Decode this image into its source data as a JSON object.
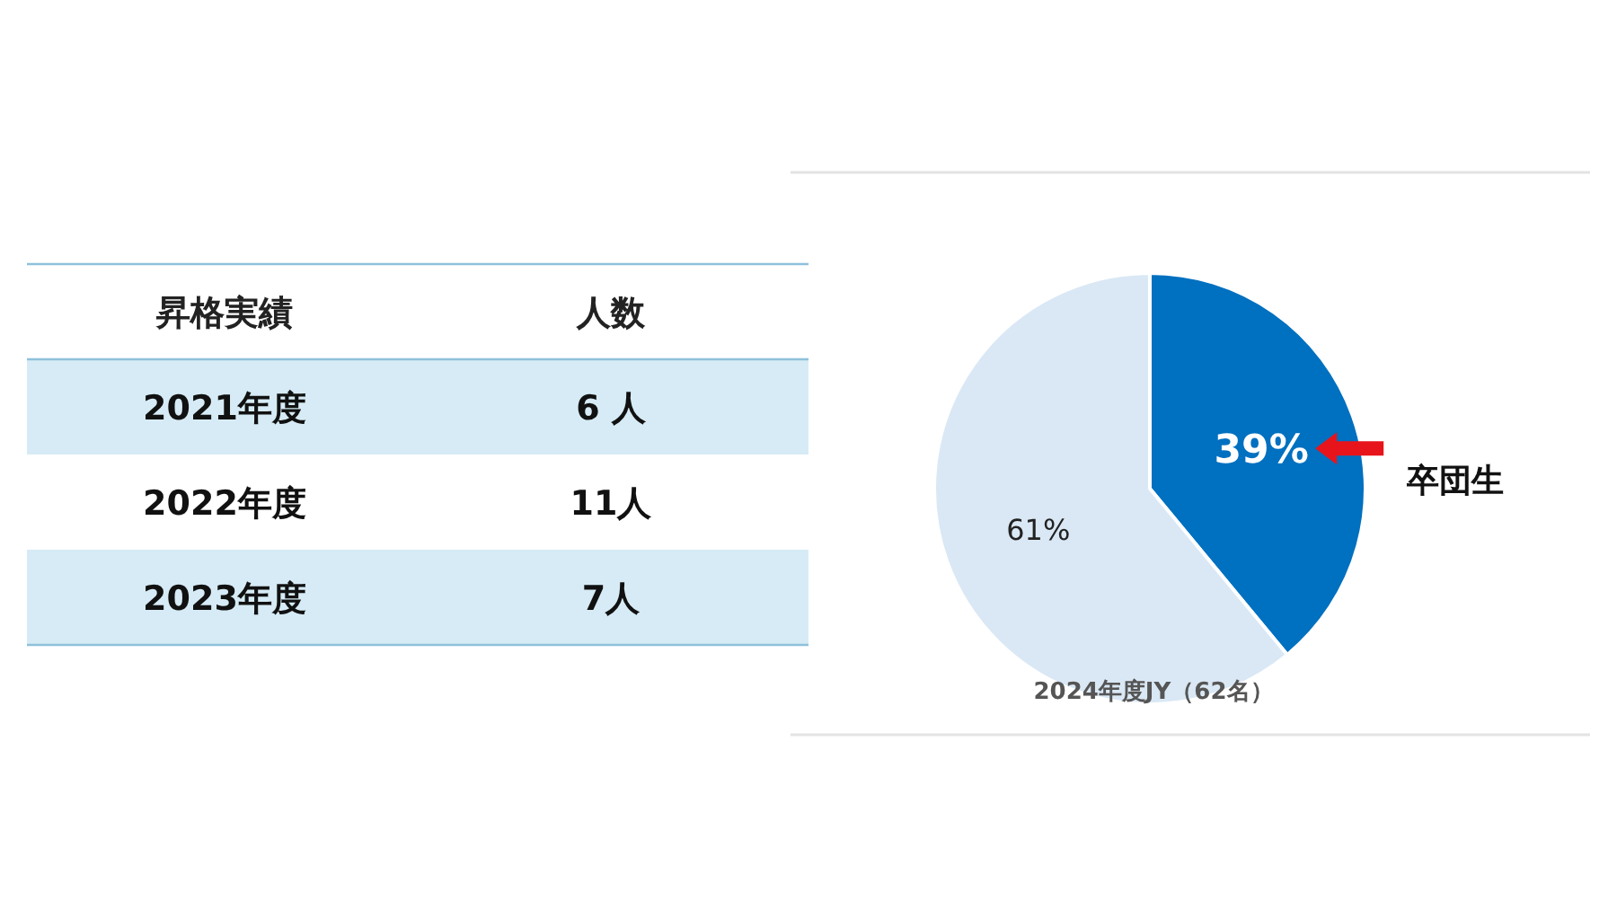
{
  "chart_data": [
    {
      "type": "other",
      "xlabel": "昇格実績",
      "ylabel": "人数",
      "categories": [
        "2021年度",
        "2022年度",
        "2023年度"
      ],
      "values": [
        6,
        11,
        7
      ],
      "value_labels": [
        "6 人",
        "11人",
        "7人"
      ]
    },
    {
      "type": "pie",
      "title": "2024年度JY（62名）",
      "categories": [
        "卒団生",
        null
      ],
      "values": [
        39,
        61
      ],
      "colors": [
        "#0070c0",
        "#dae8f5"
      ],
      "value_labels": [
        "39%",
        "61%"
      ]
    }
  ]
}
